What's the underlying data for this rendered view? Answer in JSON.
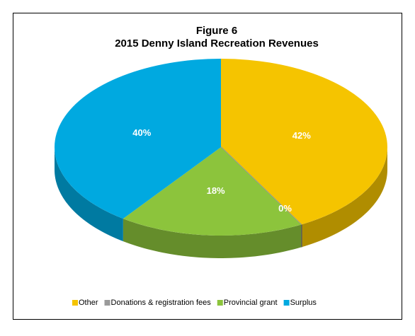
{
  "chart_data": {
    "type": "pie",
    "title": "Figure 6",
    "subtitle": "2015 Denny Island Recreation Revenues",
    "categories": [
      "Other",
      "Donations & registration fees",
      "Provincial grant",
      "Surplus"
    ],
    "values": [
      42,
      0,
      18,
      40
    ],
    "value_labels": [
      "42%",
      "0%",
      "18%",
      "40%"
    ],
    "colors": [
      "#f5c400",
      "#9a9a9a",
      "#8cc43c",
      "#00a9e0"
    ],
    "legend": "bottom"
  }
}
